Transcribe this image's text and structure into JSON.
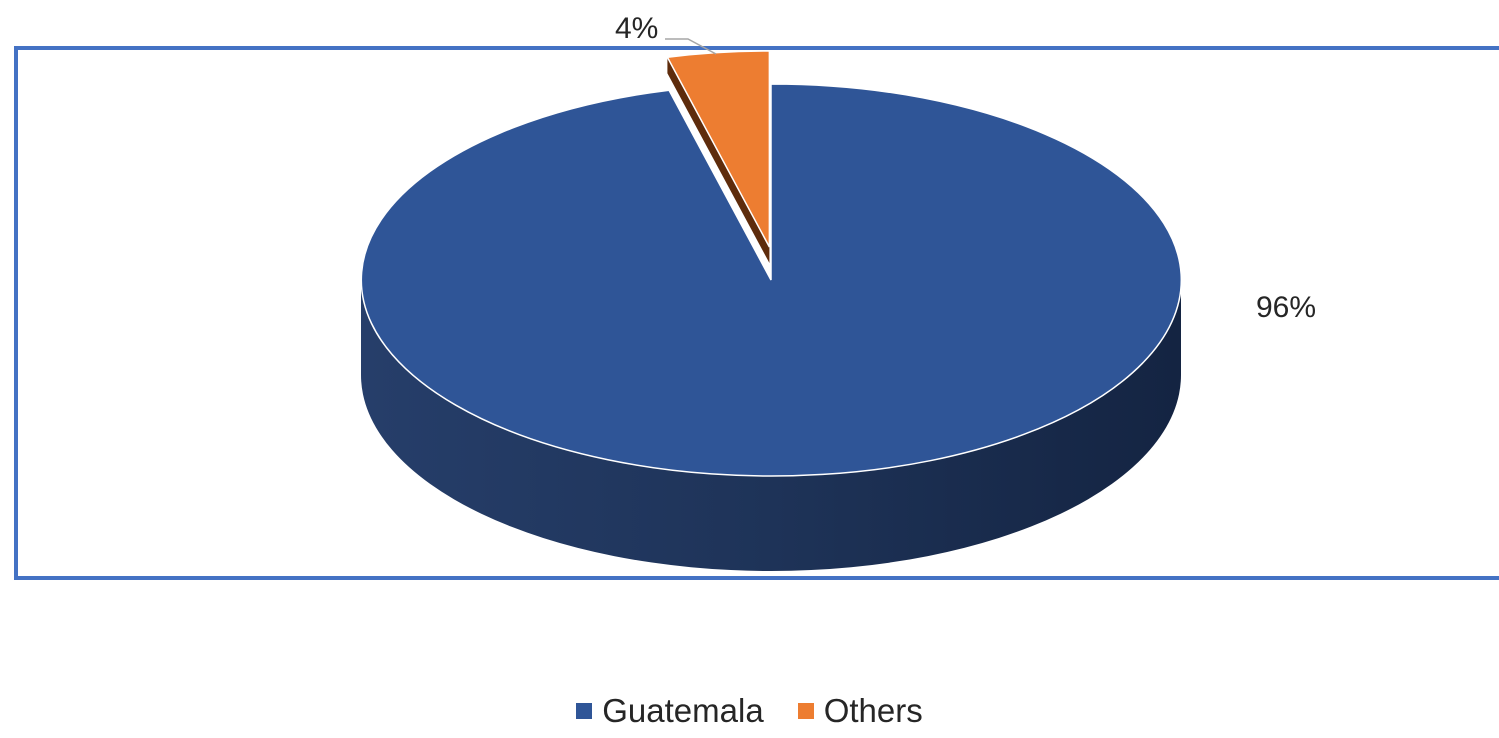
{
  "chart_data": {
    "type": "pie",
    "style": "3d-exploded",
    "title": "",
    "slices": [
      {
        "name": "Guatemala",
        "value": 96,
        "label": "96%",
        "color": "#2F5597"
      },
      {
        "name": "Others",
        "value": 4,
        "label": "4%",
        "color": "#ED7D31"
      }
    ],
    "legend": {
      "placement": "bottom"
    },
    "frame_color": "#4472C4"
  }
}
